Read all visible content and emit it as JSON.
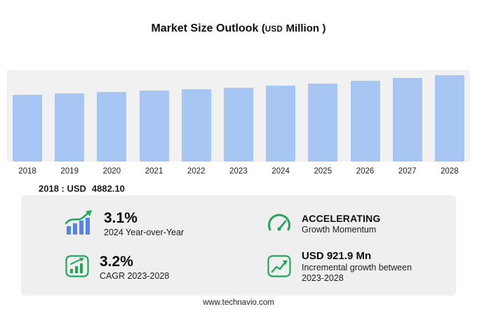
{
  "title": {
    "main": "Market Size Outlook",
    "paren_open": "(",
    "usd": "USD",
    "million": "Million",
    "paren_close": ")"
  },
  "chart_data": {
    "type": "bar",
    "title": "Market Size Outlook (USD Million)",
    "categories": [
      "2018",
      "2019",
      "2020",
      "2021",
      "2022",
      "2023",
      "2024",
      "2025",
      "2026",
      "2027",
      "2028"
    ],
    "values": [
      4882.1,
      4985,
      5090,
      5197,
      5306,
      5404,
      5571,
      5745,
      5925,
      6110,
      6326
    ],
    "xlabel": "",
    "ylabel": "USD Million",
    "ylim": [
      0,
      6700
    ],
    "grid": false,
    "legend": "none",
    "bar_color": "#a7c6f4"
  },
  "annotation": {
    "label": "2018 : USD",
    "value": "4882.10"
  },
  "stats": [
    {
      "icon": "bars-trend-up-icon",
      "value": "3.1%",
      "label": "2024 Year-over-Year"
    },
    {
      "icon": "gauge-icon",
      "value": "ACCELERATING",
      "label": "Growth Momentum"
    },
    {
      "icon": "cagr-bars-icon",
      "value": "3.2%",
      "label": "CAGR 2023-2028"
    },
    {
      "icon": "line-growth-icon",
      "value": "USD 921.9 Mn",
      "label": "Incremental growth between 2023-2028"
    }
  ],
  "colors": {
    "accent_green": "#21a65b",
    "bar_blue": "#a7c6f4",
    "icon_bar_blue": "#5585e0",
    "panel_gray": "#efefef",
    "plot_gray": "#f1f1f1"
  },
  "footer": {
    "url": "www.technavio.com"
  }
}
